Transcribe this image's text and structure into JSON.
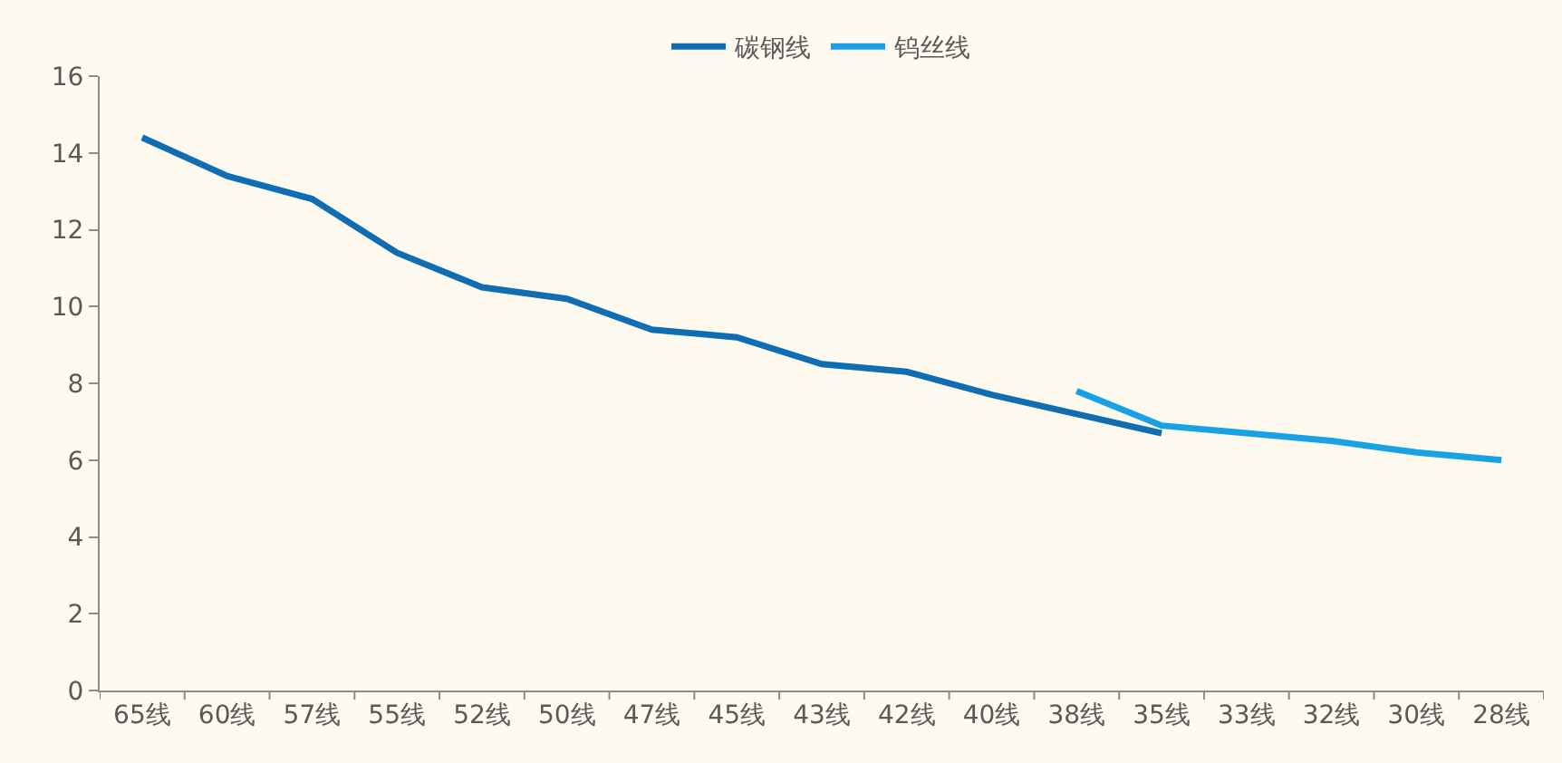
{
  "chart_data": {
    "type": "line",
    "categories": [
      "65线",
      "60线",
      "57线",
      "55线",
      "52线",
      "50线",
      "47线",
      "45线",
      "43线",
      "42线",
      "40线",
      "38线",
      "35线",
      "33线",
      "32线",
      "30线",
      "28线"
    ],
    "series": [
      {
        "name": "碳钢线",
        "color": "#0f6db3",
        "values": [
          14.4,
          13.4,
          12.8,
          11.4,
          10.5,
          10.2,
          9.4,
          9.2,
          8.5,
          8.3,
          7.7,
          7.2,
          6.7,
          null,
          null,
          null,
          null
        ]
      },
      {
        "name": "钨丝线",
        "color": "#17a2e6",
        "values": [
          null,
          null,
          null,
          null,
          null,
          null,
          null,
          null,
          null,
          null,
          null,
          7.8,
          6.9,
          6.7,
          6.5,
          6.2,
          6.0
        ]
      }
    ],
    "ylim": [
      0,
      16
    ],
    "yticks": [
      0,
      2,
      4,
      6,
      8,
      10,
      12,
      14,
      16
    ],
    "grid": false,
    "legend": "top",
    "marker": "none",
    "line_style": "solid"
  }
}
